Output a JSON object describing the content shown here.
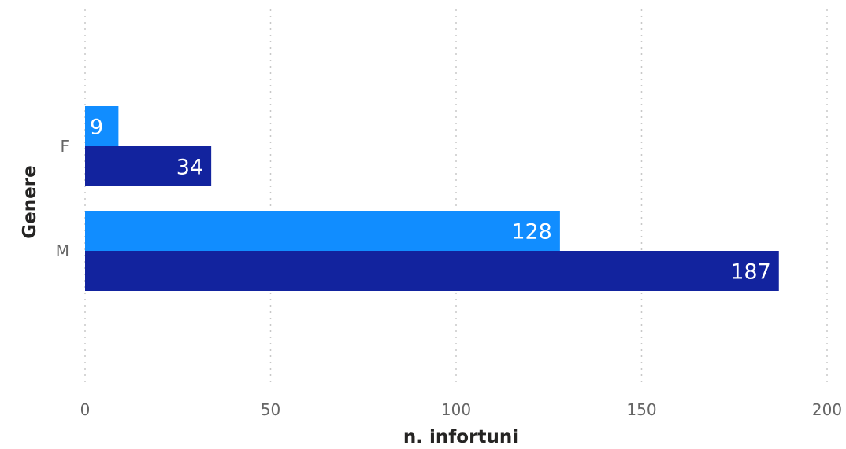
{
  "chart_data": {
    "type": "bar",
    "orientation": "horizontal",
    "categories": [
      "F",
      "M"
    ],
    "series": [
      {
        "values": [
          9,
          128
        ],
        "color": "#118DFF"
      },
      {
        "values": [
          34,
          187
        ],
        "color": "#12239E"
      }
    ],
    "xlabel": "n. infortuni",
    "ylabel": "Genere",
    "xlim": [
      0,
      200
    ],
    "xticks": [
      "0",
      "50",
      "100",
      "150",
      "200"
    ],
    "grid": "vertical dotted",
    "data_labels": true,
    "legend": false
  }
}
